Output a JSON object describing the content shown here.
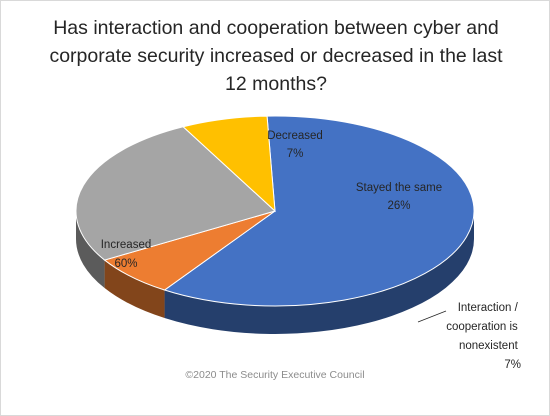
{
  "chart_data": {
    "type": "pie",
    "title": "Has interaction and cooperation between cyber and corporate security increased or decreased in the last 12 months?",
    "slices": [
      {
        "label": "Increased",
        "value": 60,
        "value_label": "60%",
        "color": "#4472c4"
      },
      {
        "label": "Decreased",
        "value": 7,
        "value_label": "7%",
        "color": "#ed7d31"
      },
      {
        "label": "Stayed the same",
        "value": 26,
        "value_label": "26%",
        "color": "#a5a5a5"
      },
      {
        "label": "Interaction / cooperation is nonexistent",
        "value": 7,
        "value_label": "7%",
        "color": "#ffc000"
      }
    ],
    "style": "3d",
    "legend": "none"
  },
  "footer": {
    "copyright": "©2020 The Security Executive Council"
  }
}
